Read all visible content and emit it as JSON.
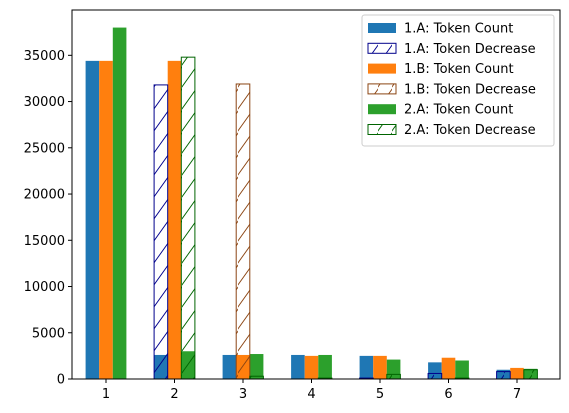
{
  "chart_data": {
    "type": "bar",
    "title": "",
    "xlabel": "",
    "ylabel": "",
    "categories": [
      "1",
      "2",
      "3",
      "4",
      "5",
      "6",
      "7"
    ],
    "ylim": [
      0,
      39900
    ],
    "yticks": [
      0,
      5000,
      10000,
      15000,
      20000,
      25000,
      30000,
      35000
    ],
    "grid": false,
    "legend_position": "top-right",
    "series": [
      {
        "name": "1.A: Token Count",
        "style": "solid",
        "color": "#1f77b4",
        "values": [
          34400,
          2600,
          2600,
          2600,
          2500,
          1800,
          1000
        ]
      },
      {
        "name": "1.A: Token Decrease",
        "style": "hatched",
        "color": "#00008b",
        "values": [
          0,
          31800,
          0,
          0,
          100,
          600,
          800
        ]
      },
      {
        "name": "1.B: Token Count",
        "style": "solid",
        "color": "#ff7f0e",
        "values": [
          34400,
          34400,
          2600,
          2500,
          2500,
          2300,
          1200
        ]
      },
      {
        "name": "1.B: Token Decrease",
        "style": "hatched",
        "color": "#8b4513",
        "values": [
          0,
          0,
          31900,
          0,
          0,
          0,
          0
        ]
      },
      {
        "name": "2.A: Token Count",
        "style": "solid",
        "color": "#2ca02c",
        "values": [
          38000,
          3000,
          2700,
          2600,
          2100,
          2000,
          1100
        ]
      },
      {
        "name": "2.A: Token Decrease",
        "style": "hatched",
        "color": "#006400",
        "values": [
          0,
          34800,
          300,
          100,
          500,
          100,
          1000
        ]
      }
    ]
  }
}
